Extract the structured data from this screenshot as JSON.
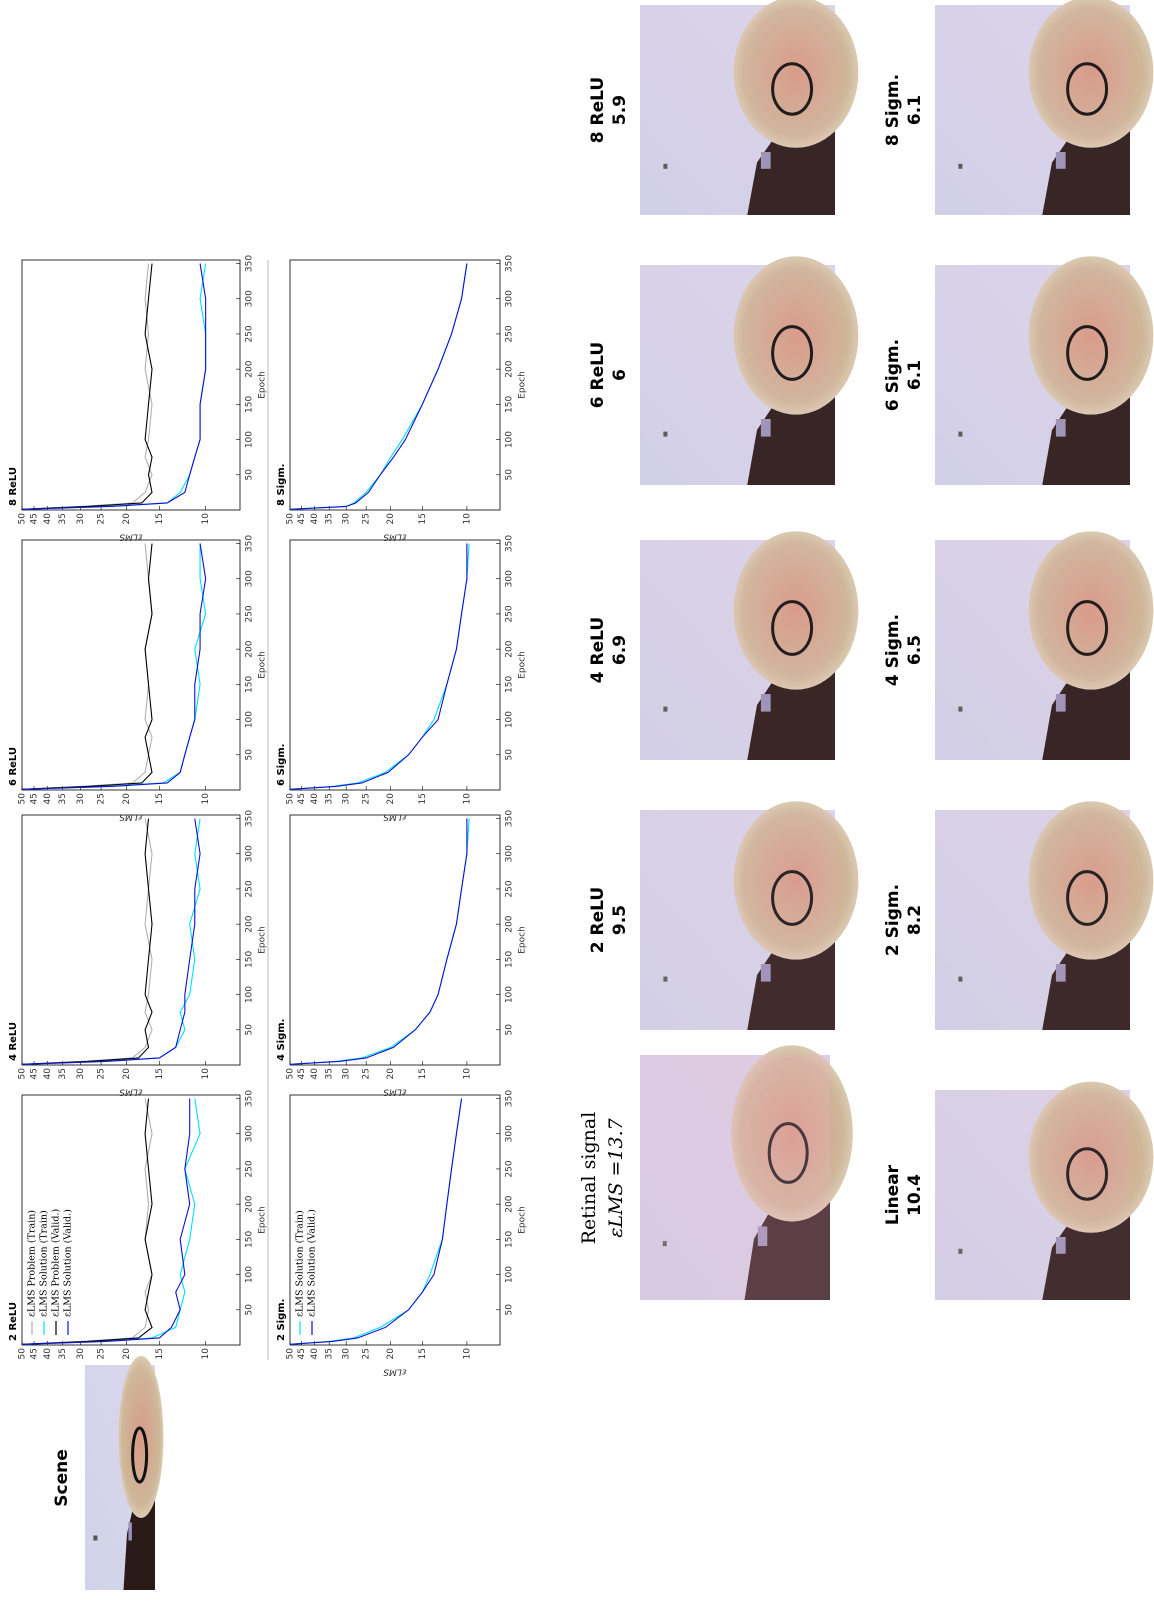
{
  "chart_data": [
    {
      "type": "line",
      "title": "2 ReLU",
      "xlabel": "Epoch",
      "ylabel": "εLMS",
      "log_y": true,
      "legend": "upper left",
      "x": [
        1,
        5,
        10,
        25,
        50,
        75,
        100,
        150,
        200,
        250,
        300,
        350
      ],
      "xlim": [
        0,
        355
      ],
      "ylim": [
        7.4,
        50
      ],
      "xticks": [
        50,
        100,
        150,
        200,
        250,
        300,
        350
      ],
      "yticks": [
        10,
        15,
        20,
        25,
        30,
        35,
        40,
        45,
        50
      ],
      "series": [
        {
          "name": "εLMS Problem (Train)",
          "color": "#b0b0b0",
          "values": [
            50,
            30,
            19,
            17,
            16.5,
            17,
            16,
            17,
            16.5,
            17,
            16,
            17
          ]
        },
        {
          "name": "εLMS Solution (Train)",
          "color": "#00e0f0",
          "values": [
            50,
            25,
            16,
            13,
            12.5,
            12,
            12.5,
            11.5,
            11,
            12,
            10.5,
            11
          ]
        },
        {
          "name": "εLMS Problem (Valid.)",
          "color": "#000000",
          "values": [
            50,
            28,
            18,
            16,
            17,
            16.5,
            16,
            17,
            16,
            16.5,
            17,
            16.5
          ]
        },
        {
          "name": "εLMS Solution (Valid.)",
          "color": "#1010d0",
          "values": [
            50,
            24,
            15,
            13.5,
            12.5,
            13,
            12,
            12.5,
            11.5,
            12,
            11.5,
            11.5
          ]
        }
      ]
    },
    {
      "type": "line",
      "title": "4 ReLU",
      "xlabel": "Epoch",
      "ylabel": "εLMS",
      "log_y": true,
      "x": [
        1,
        5,
        10,
        25,
        50,
        75,
        100,
        150,
        200,
        250,
        300,
        350
      ],
      "xlim": [
        0,
        355
      ],
      "ylim": [
        7.4,
        50
      ],
      "xticks": [
        50,
        100,
        150,
        200,
        250,
        300,
        350
      ],
      "yticks": [
        10,
        15,
        20,
        25,
        30,
        35,
        40,
        45,
        50
      ],
      "series": [
        {
          "color": "#b0b0b0",
          "values": [
            50,
            30,
            19,
            17,
            16,
            17,
            16.5,
            16,
            17,
            16.5,
            16,
            17
          ]
        },
        {
          "color": "#00e0f0",
          "values": [
            50,
            25,
            15,
            13,
            12,
            12.5,
            11.5,
            11,
            11.5,
            10.5,
            11,
            10.5
          ]
        },
        {
          "color": "#000000",
          "values": [
            50,
            28,
            18,
            16.5,
            17,
            16,
            17,
            16.5,
            16,
            16.5,
            17,
            16.5
          ]
        },
        {
          "color": "#1010d0",
          "values": [
            50,
            24,
            15,
            13,
            12.5,
            12,
            12,
            11.5,
            11,
            11,
            10.5,
            11
          ]
        }
      ]
    },
    {
      "type": "line",
      "title": "6 ReLU",
      "xlabel": "Epoch",
      "ylabel": "εLMS",
      "log_y": true,
      "x": [
        1,
        5,
        10,
        25,
        50,
        75,
        100,
        150,
        200,
        250,
        300,
        350
      ],
      "xlim": [
        0,
        355
      ],
      "ylim": [
        7.4,
        50
      ],
      "xticks": [
        50,
        100,
        150,
        200,
        250,
        300,
        350
      ],
      "yticks": [
        10,
        15,
        20,
        25,
        30,
        35,
        40,
        45,
        50
      ],
      "series": [
        {
          "color": "#b0b0b0",
          "values": [
            50,
            30,
            19,
            17,
            16.5,
            16,
            17,
            16.5,
            17,
            16,
            16.5,
            17
          ]
        },
        {
          "color": "#00e0f0",
          "values": [
            50,
            24,
            14.5,
            12.5,
            12,
            11.5,
            11,
            10.5,
            11,
            10,
            10.5,
            10.5
          ]
        },
        {
          "color": "#000000",
          "values": [
            50,
            28,
            17.5,
            16,
            16.5,
            17,
            16,
            16.5,
            17,
            16,
            16.5,
            16
          ]
        },
        {
          "color": "#1010d0",
          "values": [
            50,
            23,
            14,
            12.5,
            12,
            11.5,
            11,
            11,
            10.5,
            10.5,
            10,
            10.5
          ]
        }
      ]
    },
    {
      "type": "line",
      "title": "8 ReLU",
      "xlabel": "Epoch",
      "ylabel": "εLMS",
      "log_y": true,
      "x": [
        1,
        5,
        10,
        25,
        50,
        75,
        100,
        150,
        200,
        250,
        300,
        350
      ],
      "xlim": [
        0,
        355
      ],
      "ylim": [
        7.4,
        50
      ],
      "xticks": [
        50,
        100,
        150,
        200,
        250,
        300,
        350
      ],
      "yticks": [
        10,
        15,
        20,
        25,
        30,
        35,
        40,
        45,
        50
      ],
      "series": [
        {
          "color": "#b0b0b0",
          "values": [
            50,
            30,
            19,
            17,
            16,
            17,
            16.5,
            16,
            17,
            16.5,
            17,
            16.5
          ]
        },
        {
          "color": "#00e0f0",
          "values": [
            50,
            24,
            14,
            12.5,
            11.5,
            11,
            10.5,
            10.5,
            10,
            10,
            10.5,
            10
          ]
        },
        {
          "color": "#000000",
          "values": [
            50,
            28,
            17.5,
            16,
            16.5,
            16,
            17,
            16.5,
            16,
            17,
            16.5,
            16
          ]
        },
        {
          "color": "#1010d0",
          "values": [
            50,
            23,
            14,
            12,
            11.5,
            11,
            10.5,
            10.5,
            10,
            10,
            10,
            10.5
          ]
        }
      ]
    },
    {
      "type": "line",
      "title": "2 Sigm.",
      "xlabel": "Epoch",
      "ylabel": "εLMS",
      "log_y": true,
      "legend": "upper left",
      "x": [
        1,
        5,
        10,
        25,
        50,
        75,
        100,
        150,
        200,
        250,
        300,
        350
      ],
      "xlim": [
        0,
        355
      ],
      "ylim": [
        7.4,
        50
      ],
      "xticks": [
        50,
        100,
        150,
        200,
        250,
        300,
        350
      ],
      "yticks": [
        10,
        15,
        20,
        25,
        30,
        35,
        40,
        45,
        50
      ],
      "series": [
        {
          "name": "εLMS Solution (Train)",
          "color": "#00e0f0",
          "values": [
            50,
            35,
            28,
            22,
            17,
            15,
            14,
            12.5,
            12,
            11.5,
            11,
            10.5
          ]
        },
        {
          "name": "εLMS Solution (Valid.)",
          "color": "#1010d0",
          "values": [
            50,
            34,
            27,
            21,
            17,
            15,
            13.5,
            12.5,
            12,
            11.5,
            11,
            10.5
          ]
        }
      ]
    },
    {
      "type": "line",
      "title": "4 Sigm.",
      "xlabel": "Epoch",
      "ylabel": "εLMS",
      "log_y": true,
      "x": [
        1,
        5,
        10,
        25,
        50,
        75,
        100,
        150,
        200,
        250,
        300,
        350
      ],
      "xlim": [
        0,
        355
      ],
      "ylim": [
        7.4,
        50
      ],
      "xticks": [
        50,
        100,
        150,
        200,
        250,
        300,
        350
      ],
      "yticks": [
        10,
        15,
        20,
        25,
        30,
        35,
        40,
        45,
        50
      ],
      "series": [
        {
          "color": "#00e0f0",
          "values": [
            50,
            33,
            26,
            20,
            16,
            14,
            13,
            12,
            11,
            10.5,
            10,
            9.8
          ]
        },
        {
          "color": "#1010d0",
          "values": [
            50,
            32,
            25,
            19.5,
            16,
            14,
            13,
            12,
            11,
            10.5,
            10,
            10
          ]
        }
      ]
    },
    {
      "type": "line",
      "title": "6 Sigm.",
      "xlabel": "Epoch",
      "ylabel": "εLMS",
      "log_y": true,
      "x": [
        1,
        5,
        10,
        25,
        50,
        75,
        100,
        150,
        200,
        250,
        300,
        350
      ],
      "xlim": [
        0,
        355
      ],
      "ylim": [
        7.4,
        50
      ],
      "xticks": [
        50,
        100,
        150,
        200,
        250,
        300,
        350
      ],
      "yticks": [
        10,
        15,
        20,
        25,
        30,
        35,
        40,
        45,
        50
      ],
      "series": [
        {
          "color": "#00e0f0",
          "values": [
            50,
            34,
            27,
            21,
            17,
            15,
            13.5,
            12,
            11,
            10.5,
            10,
            9.8
          ]
        },
        {
          "color": "#1010d0",
          "values": [
            50,
            33,
            26,
            20.5,
            17,
            15,
            13,
            12,
            11,
            10.5,
            10,
            10
          ]
        }
      ]
    },
    {
      "type": "line",
      "title": "8 Sigm.",
      "xlabel": "Epoch",
      "ylabel": "εLMS",
      "log_y": true,
      "x": [
        1,
        5,
        10,
        25,
        50,
        75,
        100,
        150,
        200,
        250,
        300,
        350
      ],
      "xlim": [
        0,
        355
      ],
      "ylim": [
        7.4,
        50
      ],
      "xticks": [
        50,
        100,
        150,
        200,
        250,
        300,
        350
      ],
      "yticks": [
        10,
        15,
        20,
        25,
        30,
        35,
        40,
        45,
        50
      ],
      "series": [
        {
          "color": "#00e0f0",
          "values": [
            50,
            30,
            28,
            25,
            22,
            20,
            18,
            15,
            13,
            11.5,
            10.5,
            10
          ]
        },
        {
          "color": "#1010d0",
          "values": [
            50,
            30,
            27.5,
            24.5,
            22,
            19.5,
            17.5,
            15,
            13,
            11.5,
            10.5,
            10
          ]
        }
      ]
    }
  ],
  "images": {
    "scene": "Scene",
    "retinal": {
      "title": "Retinal signal",
      "error": "εLMS =13.7"
    },
    "panels": [
      {
        "name": "2 ReLU",
        "error": 9.5
      },
      {
        "name": "4 ReLU",
        "error": 6.9
      },
      {
        "name": "6 ReLU",
        "error": 6
      },
      {
        "name": "8 ReLU",
        "error": 5.9
      },
      {
        "name": "Linear",
        "error": 10.4
      },
      {
        "name": "2 Sigm.",
        "error": 8.2
      },
      {
        "name": "4 Sigm.",
        "error": 6.5
      },
      {
        "name": "6 Sigm.",
        "error": 6.1
      },
      {
        "name": "8 Sigm.",
        "error": 6.1
      }
    ]
  }
}
